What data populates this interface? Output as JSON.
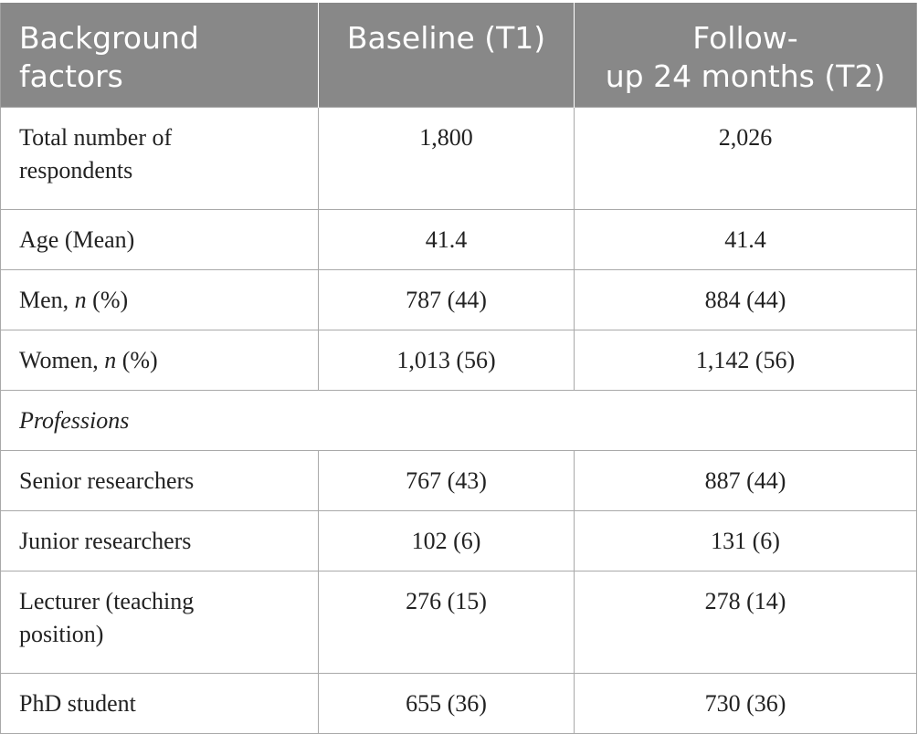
{
  "table": {
    "headers": [
      {
        "line1": "Background",
        "line2": "factors"
      },
      {
        "line1": "Baseline (T1)",
        "line2": ""
      },
      {
        "line1": "Follow-",
        "line2": "up 24 months (T2)"
      }
    ],
    "rows": [
      {
        "label_line1": "Total number of",
        "label_line2": "respondents",
        "t1": "1,800",
        "t2": "2,026"
      },
      {
        "label": "Age (Mean)",
        "t1": "41.4",
        "t2": "41.4"
      },
      {
        "label_pre": "Men, ",
        "label_ital": "n",
        "label_post": " (%)",
        "t1": "787 (44)",
        "t2": "884 (44)"
      },
      {
        "label_pre": "Women, ",
        "label_ital": "n",
        "label_post": " (%)",
        "t1": "1,013 (56)",
        "t2": "1,142 (56)"
      },
      {
        "section": "Professions"
      },
      {
        "label": "Senior researchers",
        "t1": "767 (43)",
        "t2": "887 (44)"
      },
      {
        "label": "Junior researchers",
        "t1": "102 (6)",
        "t2": "131 (6)"
      },
      {
        "label_line1": "Lecturer (teaching",
        "label_line2": "position)",
        "t1": "276 (15)",
        "t2": "278 (14)"
      },
      {
        "label": "PhD student",
        "t1": "655 (36)",
        "t2": "730 (36)"
      }
    ]
  }
}
